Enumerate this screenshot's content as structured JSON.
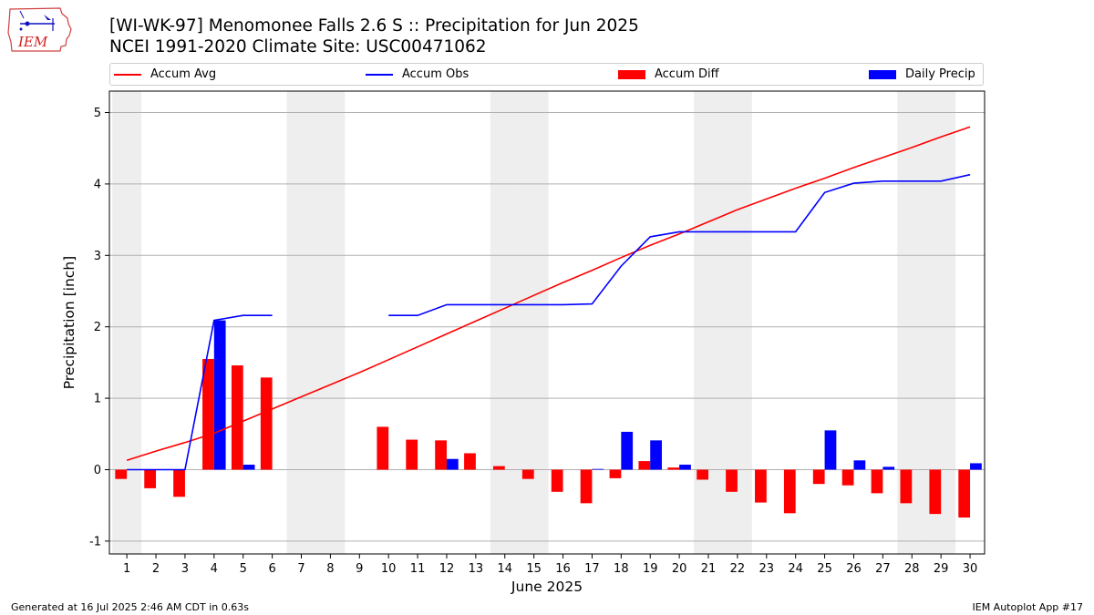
{
  "header": {
    "title_line1": "[WI-WK-97] Menomonee Falls 2.6 S :: Precipitation for Jun 2025",
    "title_line2": "NCEI 1991-2020 Climate Site: USC00471062"
  },
  "logo": {
    "text": "IEM",
    "icon": "iem-iowa-logo-icon"
  },
  "footer": {
    "generated": "Generated at 16 Jul 2025 2:46 AM CDT in 0.63s",
    "app": "IEM Autoplot App #17"
  },
  "colors": {
    "avg": "#ff0000",
    "obs": "#0000ff",
    "diff": "#ff0000",
    "daily": "#0000ff",
    "weekend": "#eeeeee",
    "grid": "#b0b0b0"
  },
  "chart_data": {
    "type": "bar",
    "xlabel": "June 2025",
    "ylabel": "Precipitation [inch]",
    "ylim": [
      -1.18,
      5.3
    ],
    "yticks": [
      -1,
      0,
      1,
      2,
      3,
      4,
      5
    ],
    "grid": "horizontal",
    "legend_position": "top",
    "days": [
      1,
      2,
      3,
      4,
      5,
      6,
      7,
      8,
      9,
      10,
      11,
      12,
      13,
      14,
      15,
      16,
      17,
      18,
      19,
      20,
      21,
      22,
      23,
      24,
      25,
      26,
      27,
      28,
      29,
      30
    ],
    "weekend_days": [
      1,
      7,
      8,
      14,
      15,
      21,
      22,
      28,
      29
    ],
    "series": [
      {
        "name": "Accum Avg",
        "kind": "line",
        "values": [
          0.13,
          0.26,
          0.38,
          0.51,
          0.68,
          0.85,
          1.02,
          1.19,
          1.36,
          1.54,
          1.72,
          1.9,
          2.08,
          2.26,
          2.44,
          2.62,
          2.79,
          2.97,
          3.14,
          3.3,
          3.47,
          3.64,
          3.79,
          3.94,
          4.08,
          4.23,
          4.37,
          4.51,
          4.66,
          4.8
        ]
      },
      {
        "name": "Accum Obs",
        "kind": "line",
        "values": [
          0.0,
          0.0,
          0.0,
          2.09,
          2.16,
          2.16,
          null,
          null,
          null,
          2.16,
          2.16,
          2.31,
          2.31,
          2.31,
          2.31,
          2.31,
          2.32,
          2.85,
          3.26,
          3.33,
          3.33,
          3.33,
          3.33,
          3.33,
          3.88,
          4.01,
          4.04,
          4.04,
          4.04,
          4.13
        ]
      },
      {
        "name": "Accum Diff",
        "kind": "bar",
        "values": [
          -0.13,
          -0.26,
          -0.38,
          1.55,
          1.46,
          1.29,
          null,
          null,
          null,
          0.6,
          0.42,
          0.41,
          0.23,
          0.05,
          -0.13,
          -0.31,
          -0.47,
          -0.12,
          0.12,
          0.03,
          -0.14,
          -0.31,
          -0.46,
          -0.61,
          -0.2,
          -0.22,
          -0.33,
          -0.47,
          -0.62,
          -0.67
        ]
      },
      {
        "name": "Daily Precip",
        "kind": "bar",
        "values": [
          0,
          0,
          0,
          2.09,
          0.07,
          0,
          null,
          null,
          null,
          0,
          0,
          0.15,
          0,
          0,
          0,
          0,
          0.01,
          0.53,
          0.41,
          0.07,
          0,
          0,
          0,
          0,
          0.55,
          0.13,
          0.04,
          0,
          0,
          0.09
        ]
      }
    ]
  }
}
